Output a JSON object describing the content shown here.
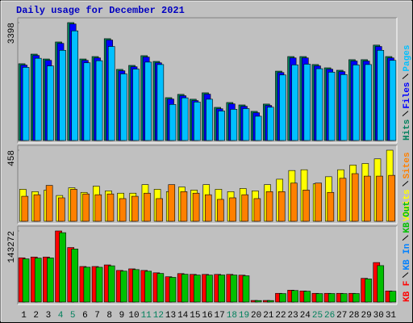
{
  "chart_data": [
    {
      "type": "bar",
      "title": "Daily usage for December 2021",
      "ylim": [
        0,
        3398
      ],
      "yticks": [
        3398
      ],
      "series": [
        {
          "name": "Hits",
          "color": "#00805c",
          "values": [
            2213,
            2490,
            2350,
            2840,
            3398,
            2350,
            2420,
            2935,
            2050,
            2165,
            2445,
            2280,
            1235,
            1330,
            1190,
            1375,
            955,
            1095,
            1025,
            840,
            1050,
            2000,
            2420,
            2420,
            2190,
            2095,
            2025,
            2330,
            2330,
            2750,
            2420
          ]
        },
        {
          "name": "Files",
          "color": "#0000ff",
          "values": [
            2173,
            2450,
            2310,
            2800,
            3358,
            2310,
            2380,
            2895,
            2010,
            2125,
            2405,
            2240,
            1195,
            1290,
            1150,
            1335,
            915,
            1055,
            985,
            800,
            1010,
            1960,
            2380,
            2380,
            2150,
            2055,
            1985,
            2290,
            2290,
            2710,
            2380
          ]
        },
        {
          "name": "Pages",
          "color": "#00c0ff",
          "values": [
            2110,
            2370,
            2150,
            2600,
            3160,
            2240,
            2300,
            2710,
            1920,
            2060,
            2260,
            2190,
            1040,
            1230,
            1110,
            1190,
            850,
            900,
            920,
            700,
            960,
            1890,
            2180,
            2200,
            2070,
            1970,
            1900,
            2180,
            2190,
            2600,
            2310
          ]
        }
      ]
    },
    {
      "type": "bar",
      "ylim": [
        0,
        458
      ],
      "yticks": [
        458
      ],
      "series": [
        {
          "name": "Visits",
          "color": "#ffff00",
          "values": [
            206,
            191,
            201,
            166,
            216,
            186,
            226,
            196,
            181,
            181,
            236,
            206,
            191,
            221,
            201,
            236,
            206,
            191,
            211,
            196,
            236,
            271,
            327,
            332,
            241,
            287,
            332,
            362,
            372,
            402,
            458
          ]
        },
        {
          "name": "Sites",
          "color": "#ff8000",
          "values": [
            161,
            171,
            231,
            151,
            206,
            176,
            171,
            176,
            146,
            161,
            181,
            146,
            236,
            191,
            181,
            171,
            141,
            151,
            171,
            146,
            191,
            191,
            246,
            201,
            246,
            186,
            277,
            307,
            291,
            291,
            296
          ]
        }
      ]
    },
    {
      "type": "bar",
      "ylim": [
        0,
        143272
      ],
      "yticks": [
        143272
      ],
      "categories": [
        "1",
        "2",
        "3",
        "4",
        "5",
        "6",
        "7",
        "8",
        "9",
        "10",
        "11",
        "12",
        "13",
        "14",
        "15",
        "16",
        "17",
        "18",
        "19",
        "20",
        "21",
        "22",
        "23",
        "24",
        "25",
        "26",
        "27",
        "28",
        "29",
        "30",
        "31"
      ],
      "category_colors": [
        "#000000",
        "#000000",
        "#000000",
        "#00805c",
        "#00805c",
        "#000000",
        "#000000",
        "#000000",
        "#000000",
        "#000000",
        "#00805c",
        "#00805c",
        "#000000",
        "#000000",
        "#000000",
        "#000000",
        "#000000",
        "#00805c",
        "#00805c",
        "#000000",
        "#000000",
        "#000000",
        "#000000",
        "#000000",
        "#00805c",
        "#00805c",
        "#000000",
        "#000000",
        "#000000",
        "#000000",
        "#000000"
      ],
      "series": [
        {
          "name": "KB F",
          "color": "#ff0000",
          "values": [
            89150,
            90740,
            90740,
            143272,
            109850,
            71630,
            71630,
            74820,
            63680,
            66860,
            63680,
            58910,
            50940,
            57300,
            55710,
            55710,
            55710,
            55710,
            54120,
            3180,
            3180,
            17510,
            23880,
            22290,
            17510,
            17510,
            17510,
            17510,
            47760,
            79600,
            22290
          ]
        },
        {
          "name": "KB In",
          "color": "#0080ff",
          "values": [
            0,
            0,
            0,
            0,
            0,
            0,
            0,
            0,
            0,
            0,
            0,
            0,
            0,
            0,
            0,
            0,
            0,
            0,
            0,
            0,
            0,
            0,
            0,
            0,
            0,
            0,
            0,
            0,
            0,
            0,
            0
          ]
        },
        {
          "name": "KB Out",
          "color": "#00c000",
          "values": [
            87000,
            88500,
            88900,
            139800,
            106900,
            70200,
            70100,
            73000,
            62300,
            65400,
            62100,
            57600,
            49700,
            56000,
            54400,
            54300,
            54500,
            54400,
            52900,
            3000,
            3000,
            17000,
            23200,
            21700,
            17000,
            17100,
            17000,
            17100,
            46500,
            73400,
            21700
          ]
        }
      ]
    }
  ]
}
